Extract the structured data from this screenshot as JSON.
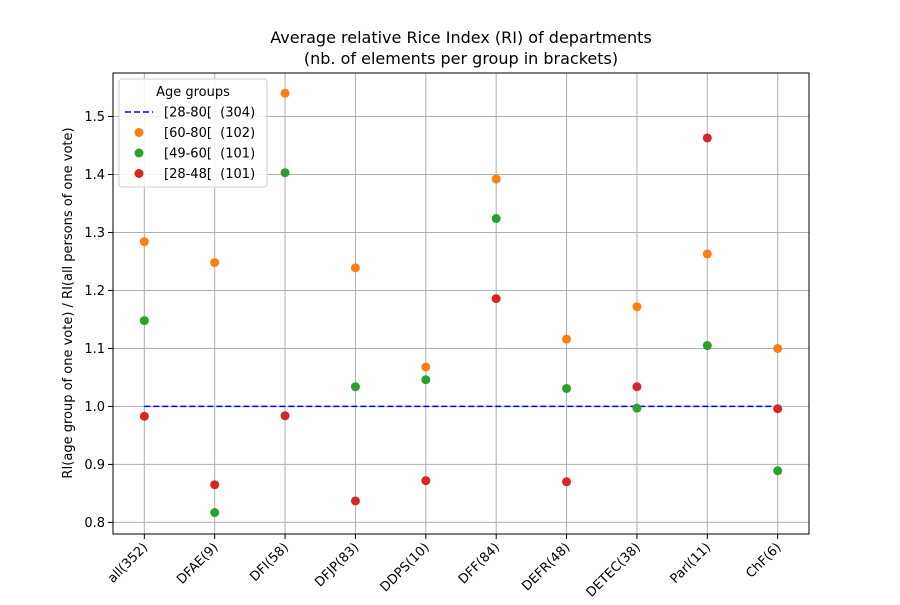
{
  "chart_data": {
    "type": "scatter",
    "title": "Average relative Rice Index (RI) of departments",
    "subtitle": "(nb. of elements per group in brackets)",
    "xlabel": "",
    "ylabel": "RI(age group of one vote) / RI(all persons of one vote)",
    "categories": [
      "all(352)",
      "DFAE(9)",
      "DFI(58)",
      "DFJP(83)",
      "DDPS(10)",
      "DFF(84)",
      "DEFR(48)",
      "DETEC(38)",
      "Parl(11)",
      "ChF(6)"
    ],
    "ylim": [
      0.78,
      1.575
    ],
    "yticks": [
      0.8,
      0.9,
      1.0,
      1.1,
      1.2,
      1.3,
      1.4,
      1.5
    ],
    "ytick_labels": [
      "0.8",
      "0.9",
      "1.0",
      "1.1",
      "1.2",
      "1.3",
      "1.4",
      "1.5"
    ],
    "grid": true,
    "legend": {
      "title": "Age groups",
      "placement": "top-left"
    },
    "series": [
      {
        "name": "[28-80[  (304)",
        "kind": "line",
        "style": "dashed",
        "color": "#0000ff",
        "values": [
          1.0,
          1.0,
          1.0,
          1.0,
          1.0,
          1.0,
          1.0,
          1.0,
          1.0,
          1.0
        ]
      },
      {
        "name": "[60-80[  (102)",
        "kind": "scatter",
        "color": "#ff7f0e",
        "values": [
          1.284,
          1.248,
          1.54,
          1.239,
          1.068,
          1.392,
          1.116,
          1.172,
          1.263,
          1.1
        ]
      },
      {
        "name": "[49-60[  (101)",
        "kind": "scatter",
        "color": "#2ca02c",
        "values": [
          1.148,
          0.817,
          1.403,
          1.034,
          1.046,
          1.324,
          1.031,
          0.997,
          1.105,
          0.889
        ]
      },
      {
        "name": "[28-48[  (101)",
        "kind": "scatter",
        "color": "#d62728",
        "values": [
          0.983,
          0.865,
          0.984,
          0.837,
          0.872,
          1.186,
          0.87,
          1.034,
          1.463,
          0.996
        ]
      }
    ]
  }
}
